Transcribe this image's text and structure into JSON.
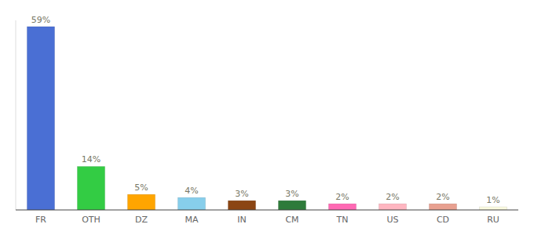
{
  "chart_data": {
    "type": "bar",
    "categories": [
      "FR",
      "OTH",
      "DZ",
      "MA",
      "IN",
      "CM",
      "TN",
      "US",
      "CD",
      "RU"
    ],
    "values": [
      59,
      14,
      5,
      4,
      3,
      3,
      2,
      2,
      2,
      1
    ],
    "value_labels": [
      "59%",
      "14%",
      "5%",
      "4%",
      "3%",
      "3%",
      "2%",
      "2%",
      "2%",
      "1%"
    ],
    "colors": [
      "#4A6FD4",
      "#33CC44",
      "#FFA500",
      "#87CEEB",
      "#8B4513",
      "#2E7B3A",
      "#FF69B4",
      "#FFB6C1",
      "#E8A090",
      "#FAFAE0"
    ],
    "ylim": [
      0,
      61
    ],
    "data_labels": true,
    "tick_labels": "x",
    "grid": false
  }
}
